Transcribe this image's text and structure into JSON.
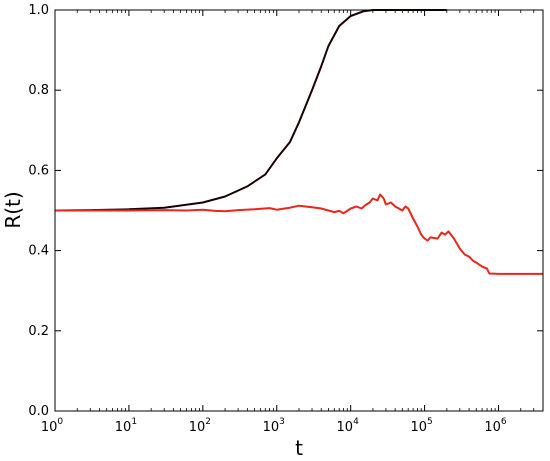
{
  "chart_data": {
    "type": "line",
    "xlabel": "t",
    "ylabel": "R(t)",
    "xscale": "log",
    "xlim": [
      1,
      4000000
    ],
    "ylim": [
      0,
      1
    ],
    "grid": false,
    "x_ticks": [
      {
        "value": 1,
        "base": "10",
        "exp": "0"
      },
      {
        "value": 10,
        "base": "10",
        "exp": "1"
      },
      {
        "value": 100,
        "base": "10",
        "exp": "2"
      },
      {
        "value": 1000,
        "base": "10",
        "exp": "3"
      },
      {
        "value": 10000,
        "base": "10",
        "exp": "4"
      },
      {
        "value": 100000,
        "base": "10",
        "exp": "5"
      },
      {
        "value": 1000000,
        "base": "10",
        "exp": "6"
      }
    ],
    "y_ticks": [
      "0.0",
      "0.2",
      "0.4",
      "0.6",
      "0.8",
      "1.0"
    ],
    "series": [
      {
        "color": "#1a0000",
        "x": [
          1,
          3,
          10,
          30,
          100,
          200,
          400,
          700,
          1000,
          1500,
          2000,
          3000,
          4000,
          5000,
          7000,
          10000,
          15000,
          20000,
          30000,
          50000,
          100000,
          200000
        ],
        "y": [
          0.5,
          0.501,
          0.503,
          0.507,
          0.52,
          0.535,
          0.56,
          0.59,
          0.63,
          0.67,
          0.72,
          0.8,
          0.86,
          0.91,
          0.96,
          0.985,
          0.997,
          1.0,
          1.0,
          1.0,
          1.0,
          1.0
        ]
      },
      {
        "color": "#e8271a",
        "x": [
          1,
          3,
          10,
          30,
          60,
          100,
          150,
          200,
          300,
          500,
          800,
          1000,
          1500,
          2000,
          3000,
          4000,
          5000,
          6000,
          7000,
          8000,
          10000,
          12000,
          14000,
          16000,
          18000,
          20000,
          23000,
          25000,
          28000,
          30000,
          35000,
          40000,
          45000,
          50000,
          55000,
          60000,
          70000,
          80000,
          90000,
          100000,
          110000,
          120000,
          130000,
          150000,
          170000,
          190000,
          210000,
          250000,
          300000,
          350000,
          400000,
          450000,
          500000,
          600000,
          700000,
          750000,
          1000000,
          2000000,
          4000000
        ],
        "y": [
          0.5,
          0.5,
          0.5,
          0.501,
          0.5,
          0.502,
          0.499,
          0.498,
          0.501,
          0.503,
          0.506,
          0.502,
          0.507,
          0.512,
          0.508,
          0.505,
          0.5,
          0.496,
          0.499,
          0.493,
          0.505,
          0.51,
          0.505,
          0.514,
          0.52,
          0.53,
          0.525,
          0.54,
          0.53,
          0.515,
          0.52,
          0.51,
          0.505,
          0.5,
          0.51,
          0.505,
          0.48,
          0.46,
          0.44,
          0.43,
          0.425,
          0.433,
          0.432,
          0.43,
          0.445,
          0.44,
          0.448,
          0.43,
          0.405,
          0.39,
          0.385,
          0.375,
          0.37,
          0.36,
          0.355,
          0.343,
          0.342,
          0.342,
          0.342
        ]
      }
    ]
  }
}
